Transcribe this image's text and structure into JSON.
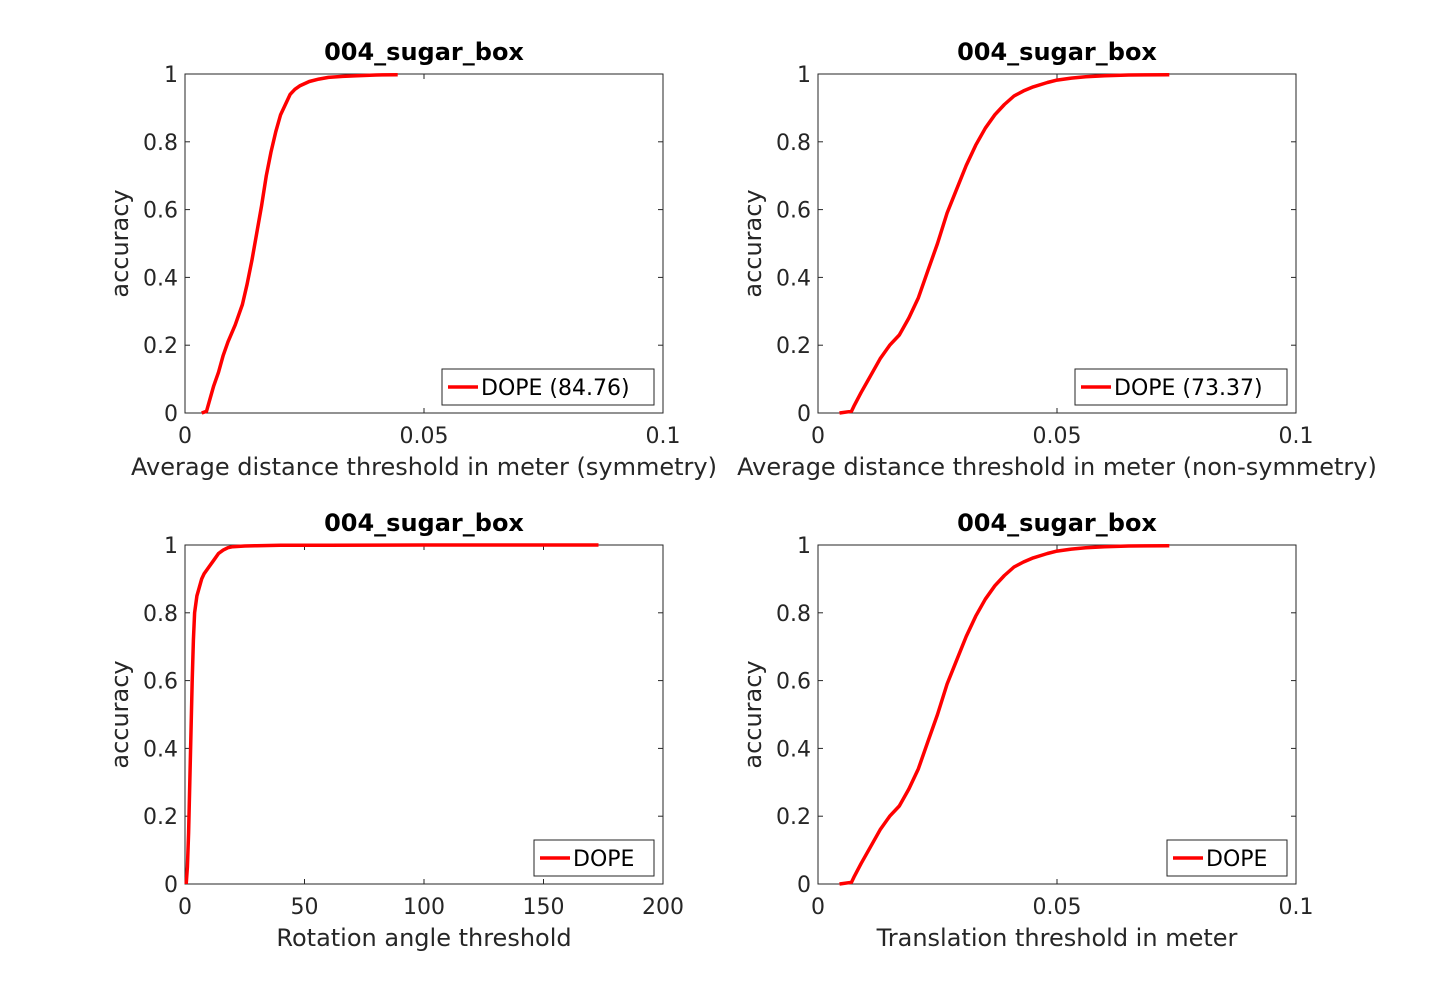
{
  "chart_data": [
    {
      "type": "line",
      "title": "004_sugar_box",
      "xlabel": "Average distance threshold in meter (symmetry)",
      "ylabel": "accuracy",
      "xlim": [
        0,
        0.1
      ],
      "ylim": [
        0,
        1
      ],
      "xticks": [
        "0",
        "0.05",
        "0.1"
      ],
      "yticks": [
        "0",
        "0.2",
        "0.4",
        "0.6",
        "0.8",
        "1"
      ],
      "xtick_values": [
        0,
        0.05,
        0.1
      ],
      "ytick_values": [
        0,
        0.2,
        0.4,
        0.6,
        0.8,
        1
      ],
      "legend": "bottom-right",
      "grid": false,
      "series": [
        {
          "name": "DOPE (84.76)",
          "color": "#ff0000",
          "x": [
            0.0035,
            0.0045,
            0.005,
            0.006,
            0.007,
            0.008,
            0.009,
            0.0105,
            0.012,
            0.013,
            0.014,
            0.015,
            0.016,
            0.017,
            0.018,
            0.019,
            0.02,
            0.021,
            0.022,
            0.023,
            0.024,
            0.026,
            0.028,
            0.03,
            0.033,
            0.036,
            0.04,
            0.0445
          ],
          "y": [
            0,
            0.005,
            0.03,
            0.08,
            0.12,
            0.17,
            0.21,
            0.26,
            0.32,
            0.38,
            0.45,
            0.53,
            0.61,
            0.7,
            0.77,
            0.83,
            0.88,
            0.91,
            0.94,
            0.955,
            0.965,
            0.978,
            0.985,
            0.99,
            0.993,
            0.995,
            0.997,
            0.998
          ]
        }
      ]
    },
    {
      "type": "line",
      "title": "004_sugar_box",
      "xlabel": "Average distance threshold in meter (non-symmetry)",
      "ylabel": "accuracy",
      "xlim": [
        0,
        0.1
      ],
      "ylim": [
        0,
        1
      ],
      "xticks": [
        "0",
        "0.05",
        "0.1"
      ],
      "yticks": [
        "0",
        "0.2",
        "0.4",
        "0.6",
        "0.8",
        "1"
      ],
      "xtick_values": [
        0,
        0.05,
        0.1
      ],
      "ytick_values": [
        0,
        0.2,
        0.4,
        0.6,
        0.8,
        1
      ],
      "legend": "bottom-right",
      "grid": false,
      "series": [
        {
          "name": "DOPE (73.37)",
          "color": "#ff0000",
          "x": [
            0.0045,
            0.007,
            0.0075,
            0.009,
            0.011,
            0.013,
            0.015,
            0.017,
            0.019,
            0.021,
            0.023,
            0.025,
            0.027,
            0.029,
            0.031,
            0.033,
            0.035,
            0.037,
            0.039,
            0.041,
            0.043,
            0.045,
            0.048,
            0.05,
            0.053,
            0.056,
            0.06,
            0.065,
            0.0735
          ],
          "y": [
            0,
            0.005,
            0.02,
            0.06,
            0.11,
            0.16,
            0.2,
            0.23,
            0.28,
            0.34,
            0.42,
            0.5,
            0.59,
            0.66,
            0.73,
            0.79,
            0.84,
            0.88,
            0.91,
            0.935,
            0.95,
            0.962,
            0.975,
            0.982,
            0.988,
            0.992,
            0.995,
            0.997,
            0.998
          ]
        }
      ]
    },
    {
      "type": "line",
      "title": "004_sugar_box",
      "xlabel": "Rotation angle threshold",
      "ylabel": "accuracy",
      "xlim": [
        0,
        200
      ],
      "ylim": [
        0,
        1
      ],
      "xticks": [
        "0",
        "50",
        "100",
        "150",
        "200"
      ],
      "yticks": [
        "0",
        "0.2",
        "0.4",
        "0.6",
        "0.8",
        "1"
      ],
      "xtick_values": [
        0,
        50,
        100,
        150,
        200
      ],
      "ytick_values": [
        0,
        0.2,
        0.4,
        0.6,
        0.8,
        1
      ],
      "legend": "bottom-right",
      "grid": false,
      "series": [
        {
          "name": "DOPE",
          "color": "#ff0000",
          "x": [
            0.5,
            1,
            1.5,
            2,
            2.5,
            3,
            3.5,
            4,
            5,
            6,
            7,
            8,
            10,
            12,
            14,
            16,
            18,
            20,
            25,
            30,
            40,
            60,
            100,
            173
          ],
          "y": [
            0,
            0.05,
            0.15,
            0.3,
            0.45,
            0.6,
            0.72,
            0.8,
            0.85,
            0.875,
            0.9,
            0.915,
            0.935,
            0.955,
            0.975,
            0.985,
            0.992,
            0.995,
            0.997,
            0.998,
            0.999,
            0.999,
            1,
            1
          ]
        }
      ]
    },
    {
      "type": "line",
      "title": "004_sugar_box",
      "xlabel": "Translation threshold in meter",
      "ylabel": "accuracy",
      "xlim": [
        0,
        0.1
      ],
      "ylim": [
        0,
        1
      ],
      "xticks": [
        "0",
        "0.05",
        "0.1"
      ],
      "yticks": [
        "0",
        "0.2",
        "0.4",
        "0.6",
        "0.8",
        "1"
      ],
      "xtick_values": [
        0,
        0.05,
        0.1
      ],
      "ytick_values": [
        0,
        0.2,
        0.4,
        0.6,
        0.8,
        1
      ],
      "legend": "bottom-right",
      "grid": false,
      "series": [
        {
          "name": "DOPE",
          "color": "#ff0000",
          "x": [
            0.0045,
            0.007,
            0.0075,
            0.009,
            0.011,
            0.013,
            0.015,
            0.017,
            0.019,
            0.021,
            0.023,
            0.025,
            0.027,
            0.029,
            0.031,
            0.033,
            0.035,
            0.037,
            0.039,
            0.041,
            0.043,
            0.045,
            0.048,
            0.05,
            0.053,
            0.056,
            0.06,
            0.065,
            0.0735
          ],
          "y": [
            0,
            0.005,
            0.02,
            0.06,
            0.11,
            0.16,
            0.2,
            0.23,
            0.28,
            0.34,
            0.42,
            0.5,
            0.59,
            0.66,
            0.73,
            0.79,
            0.84,
            0.88,
            0.91,
            0.935,
            0.95,
            0.962,
            0.975,
            0.982,
            0.988,
            0.992,
            0.995,
            0.997,
            0.998
          ]
        }
      ]
    }
  ]
}
